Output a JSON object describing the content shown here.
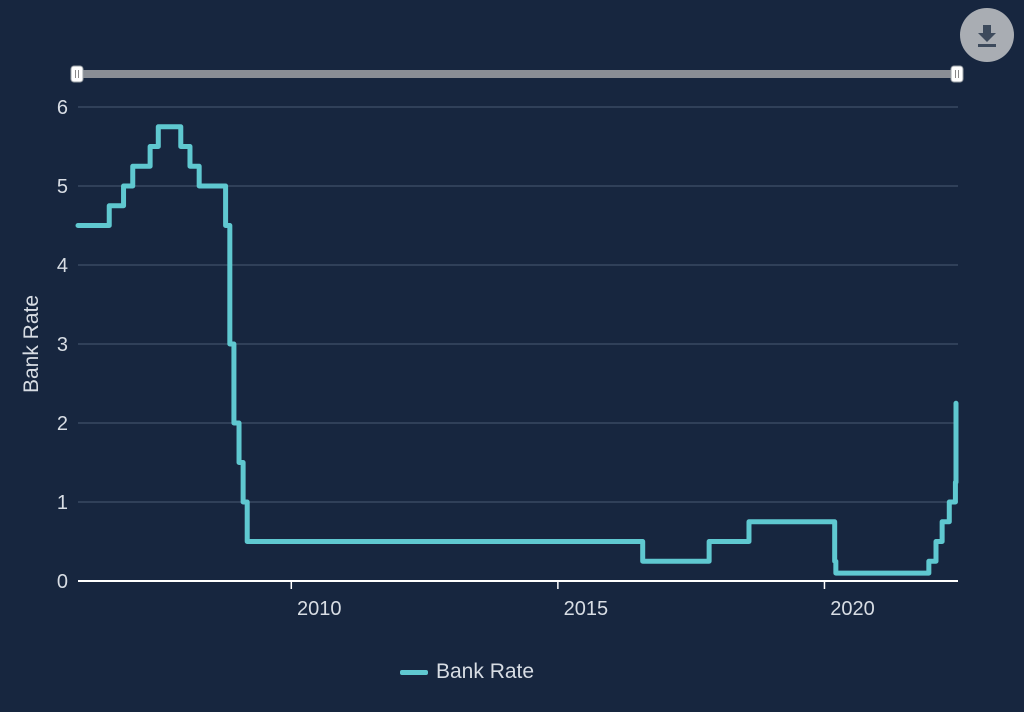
{
  "toolbar": {
    "download_icon": "download-icon"
  },
  "colors": {
    "background": "#17263f",
    "series": "#5fc8d0",
    "grid": "#4a5a73",
    "axis": "#ffffff",
    "text": "#d8dde4",
    "slider_track": "#8a8e95"
  },
  "chart_data": {
    "type": "line",
    "step": true,
    "title": "",
    "xlabel": "",
    "ylabel": "Bank Rate",
    "x_range": [
      "2006-01-01",
      "2022-06-20"
    ],
    "ylim": [
      0,
      6
    ],
    "y_ticks": [
      0,
      1,
      2,
      3,
      4,
      5,
      6
    ],
    "x_ticks": [
      {
        "date": "2010-01-01",
        "label": "2010"
      },
      {
        "date": "2015-01-01",
        "label": "2015"
      },
      {
        "date": "2020-01-01",
        "label": "2020"
      }
    ],
    "grid": true,
    "legend_position": "bottom",
    "series": [
      {
        "name": "Bank Rate",
        "points": [
          [
            "2006-01-01",
            4.5
          ],
          [
            "2006-08-03",
            4.75
          ],
          [
            "2006-11-09",
            5.0
          ],
          [
            "2007-01-11",
            5.25
          ],
          [
            "2007-05-10",
            5.5
          ],
          [
            "2007-07-05",
            5.75
          ],
          [
            "2007-12-06",
            5.5
          ],
          [
            "2008-02-07",
            5.25
          ],
          [
            "2008-04-10",
            5.0
          ],
          [
            "2008-10-08",
            4.5
          ],
          [
            "2008-11-06",
            3.0
          ],
          [
            "2008-12-04",
            2.0
          ],
          [
            "2009-01-08",
            1.5
          ],
          [
            "2009-02-05",
            1.0
          ],
          [
            "2009-03-05",
            0.5
          ],
          [
            "2016-08-04",
            0.25
          ],
          [
            "2017-11-02",
            0.5
          ],
          [
            "2018-08-02",
            0.75
          ],
          [
            "2020-03-11",
            0.25
          ],
          [
            "2020-03-19",
            0.1
          ],
          [
            "2021-12-16",
            0.25
          ],
          [
            "2022-02-03",
            0.5
          ],
          [
            "2022-03-17",
            0.75
          ],
          [
            "2022-05-05",
            1.0
          ],
          [
            "2022-06-16",
            1.25
          ],
          [
            "2022-08-04",
            1.75
          ],
          [
            "2022-09-22",
            2.25
          ]
        ]
      }
    ]
  }
}
